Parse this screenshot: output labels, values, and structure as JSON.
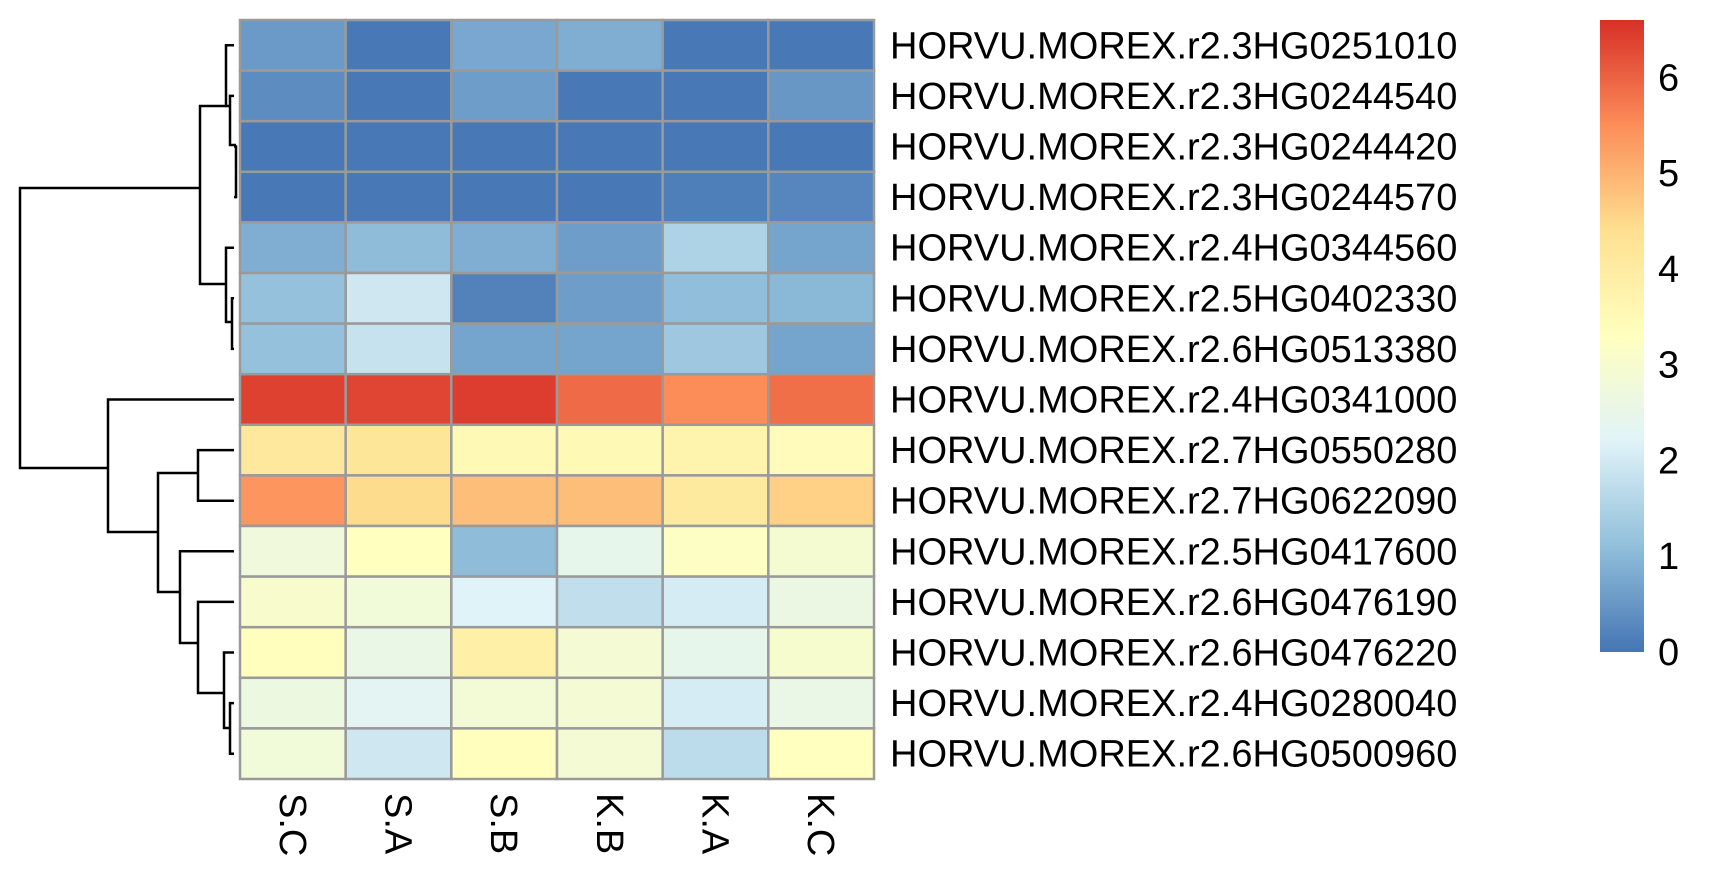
{
  "chart_data": {
    "type": "heatmap",
    "title": "",
    "columns": [
      "S.C",
      "S.A",
      "S.B",
      "K.B",
      "K.A",
      "K.C"
    ],
    "rows": [
      "HORVU.MOREX.r2.3HG0251010",
      "HORVU.MOREX.r2.3HG0244540",
      "HORVU.MOREX.r2.3HG0244420",
      "HORVU.MOREX.r2.3HG0244570",
      "HORVU.MOREX.r2.4HG0344560",
      "HORVU.MOREX.r2.5HG0402330",
      "HORVU.MOREX.r2.6HG0513380",
      "HORVU.MOREX.r2.4HG0341000",
      "HORVU.MOREX.r2.7HG0550280",
      "HORVU.MOREX.r2.7HG0622090",
      "HORVU.MOREX.r2.5HG0417600",
      "HORVU.MOREX.r2.6HG0476190",
      "HORVU.MOREX.r2.6HG0476220",
      "HORVU.MOREX.r2.4HG0280040",
      "HORVU.MOREX.r2.6HG0500960"
    ],
    "values": [
      [
        0.55,
        0.05,
        0.75,
        0.85,
        0.05,
        0.05
      ],
      [
        0.35,
        0.05,
        0.6,
        0.05,
        0.05,
        0.5
      ],
      [
        0.05,
        0.05,
        0.05,
        0.05,
        0.05,
        0.05
      ],
      [
        0.05,
        0.05,
        0.05,
        0.05,
        0.15,
        0.25
      ],
      [
        0.85,
        1.05,
        0.85,
        0.6,
        1.5,
        0.7
      ],
      [
        1.15,
        1.95,
        0.2,
        0.6,
        1.1,
        1.0
      ],
      [
        1.15,
        1.85,
        0.7,
        0.7,
        1.3,
        0.7
      ],
      [
        6.4,
        6.35,
        6.45,
        5.9,
        5.5,
        5.85
      ],
      [
        4.1,
        4.2,
        3.5,
        3.5,
        3.7,
        3.4
      ],
      [
        5.4,
        4.45,
        4.85,
        4.85,
        4.05,
        4.6
      ],
      [
        2.75,
        3.3,
        1.05,
        2.45,
        3.2,
        2.95
      ],
      [
        3.05,
        2.8,
        2.2,
        1.75,
        2.05,
        2.6
      ],
      [
        3.35,
        2.55,
        3.85,
        2.9,
        2.45,
        3.0
      ],
      [
        2.65,
        2.3,
        2.85,
        2.9,
        2.05,
        2.55
      ],
      [
        2.8,
        1.95,
        3.35,
        2.9,
        1.7,
        3.3
      ]
    ],
    "color_scale": {
      "min": 0,
      "max": 6.6,
      "ticks": [
        0,
        1,
        2,
        3,
        4,
        5,
        6
      ],
      "stops": [
        {
          "value": 0,
          "color": "#4575b4"
        },
        {
          "value": 1.1,
          "color": "#91bfdb"
        },
        {
          "value": 2.2,
          "color": "#e0f3f8"
        },
        {
          "value": 3.3,
          "color": "#ffffbf"
        },
        {
          "value": 4.4,
          "color": "#fee090"
        },
        {
          "value": 5.5,
          "color": "#fc8d59"
        },
        {
          "value": 6.6,
          "color": "#d73027"
        }
      ]
    },
    "row_dendrogram": "shown on left",
    "colorbar_placement": "right"
  }
}
